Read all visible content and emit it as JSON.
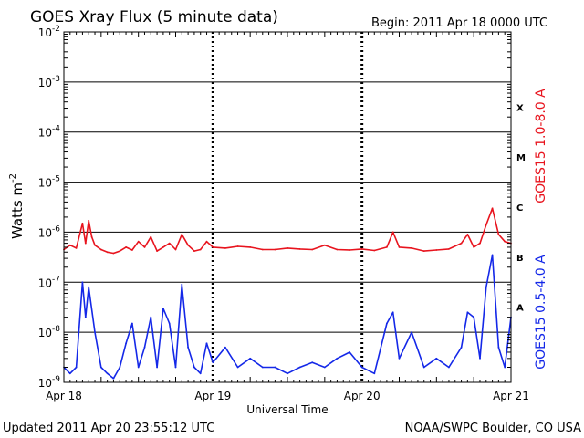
{
  "chart_data": {
    "type": "line",
    "title": "GOES Xray Flux (5 minute data)",
    "begin_label": "Begin:  2011 Apr 18 0000 UTC",
    "xlabel": "Universal Time",
    "ylabel": "Watts m",
    "ylabel_superscript": "-2",
    "y_scale": "log",
    "ylim": [
      1e-09,
      0.01
    ],
    "xlim": [
      "2011-04-18 00:00",
      "2011-04-21 00:00"
    ],
    "x_ticks": [
      "Apr 18",
      "Apr 19",
      "Apr 20",
      "Apr 21"
    ],
    "y_ticks": [
      {
        "mantissa": "10",
        "exp": "-9"
      },
      {
        "mantissa": "10",
        "exp": "-8"
      },
      {
        "mantissa": "10",
        "exp": "-7"
      },
      {
        "mantissa": "10",
        "exp": "-6"
      },
      {
        "mantissa": "10",
        "exp": "-5"
      },
      {
        "mantissa": "10",
        "exp": "-4"
      },
      {
        "mantissa": "10",
        "exp": "-3"
      },
      {
        "mantissa": "10",
        "exp": "-2"
      }
    ],
    "flare_classes": [
      {
        "label": "A",
        "exp": -8
      },
      {
        "label": "B",
        "exp": -7
      },
      {
        "label": "C",
        "exp": -6
      },
      {
        "label": "M",
        "exp": -5
      },
      {
        "label": "X",
        "exp": -4
      }
    ],
    "grid": true,
    "series": [
      {
        "name": "GOES15 1.0-8.0 A",
        "color": "#e8141e",
        "x": [
          "2011-04-18 00:00",
          "2011-04-18 01:00",
          "2011-04-18 02:00",
          "2011-04-18 03:00",
          "2011-04-18 03:30",
          "2011-04-18 04:00",
          "2011-04-18 04:30",
          "2011-04-18 05:00",
          "2011-04-18 06:00",
          "2011-04-18 07:00",
          "2011-04-18 08:00",
          "2011-04-18 09:00",
          "2011-04-18 10:00",
          "2011-04-18 11:00",
          "2011-04-18 12:00",
          "2011-04-18 13:00",
          "2011-04-18 14:00",
          "2011-04-18 15:00",
          "2011-04-18 16:00",
          "2011-04-18 17:00",
          "2011-04-18 18:00",
          "2011-04-18 19:00",
          "2011-04-18 20:00",
          "2011-04-18 21:00",
          "2011-04-18 22:00",
          "2011-04-18 23:00",
          "2011-04-19 00:00",
          "2011-04-19 02:00",
          "2011-04-19 04:00",
          "2011-04-19 06:00",
          "2011-04-19 08:00",
          "2011-04-19 10:00",
          "2011-04-19 12:00",
          "2011-04-19 14:00",
          "2011-04-19 16:00",
          "2011-04-19 18:00",
          "2011-04-19 20:00",
          "2011-04-19 22:00",
          "2011-04-20 00:00",
          "2011-04-20 02:00",
          "2011-04-20 04:00",
          "2011-04-20 05:00",
          "2011-04-20 06:00",
          "2011-04-20 08:00",
          "2011-04-20 10:00",
          "2011-04-20 12:00",
          "2011-04-20 14:00",
          "2011-04-20 16:00",
          "2011-04-20 17:00",
          "2011-04-20 18:00",
          "2011-04-20 19:00",
          "2011-04-20 20:00",
          "2011-04-20 21:00",
          "2011-04-20 22:00",
          "2011-04-20 23:00",
          "2011-04-21 00:00"
        ],
        "values": [
          4.5e-07,
          5.5e-07,
          4.8e-07,
          1.5e-06,
          6e-07,
          1.7e-06,
          8e-07,
          5.5e-07,
          4.5e-07,
          4e-07,
          3.8e-07,
          4.2e-07,
          5e-07,
          4.4e-07,
          6.5e-07,
          5e-07,
          8e-07,
          4.2e-07,
          5e-07,
          6e-07,
          4.5e-07,
          9e-07,
          5.5e-07,
          4.2e-07,
          4.5e-07,
          6.5e-07,
          5e-07,
          4.8e-07,
          5.2e-07,
          5e-07,
          4.5e-07,
          4.5e-07,
          4.8e-07,
          4.6e-07,
          4.5e-07,
          5.5e-07,
          4.5e-07,
          4.4e-07,
          4.6e-07,
          4.3e-07,
          5e-07,
          1e-06,
          5e-07,
          4.8e-07,
          4.2e-07,
          4.4e-07,
          4.6e-07,
          6e-07,
          9e-07,
          5e-07,
          6e-07,
          1.4e-06,
          3e-06,
          9e-07,
          6.5e-07,
          6e-07
        ]
      },
      {
        "name": "GOES15 0.5-4.0 A",
        "color": "#1428e8",
        "x": [
          "2011-04-18 00:00",
          "2011-04-18 01:00",
          "2011-04-18 02:00",
          "2011-04-18 03:00",
          "2011-04-18 03:30",
          "2011-04-18 04:00",
          "2011-04-18 05:00",
          "2011-04-18 06:00",
          "2011-04-18 07:00",
          "2011-04-18 08:00",
          "2011-04-18 09:00",
          "2011-04-18 10:00",
          "2011-04-18 11:00",
          "2011-04-18 12:00",
          "2011-04-18 13:00",
          "2011-04-18 14:00",
          "2011-04-18 15:00",
          "2011-04-18 16:00",
          "2011-04-18 17:00",
          "2011-04-18 18:00",
          "2011-04-18 19:00",
          "2011-04-18 20:00",
          "2011-04-18 21:00",
          "2011-04-18 22:00",
          "2011-04-18 23:00",
          "2011-04-19 00:00",
          "2011-04-19 02:00",
          "2011-04-19 04:00",
          "2011-04-19 06:00",
          "2011-04-19 08:00",
          "2011-04-19 10:00",
          "2011-04-19 12:00",
          "2011-04-19 14:00",
          "2011-04-19 16:00",
          "2011-04-19 18:00",
          "2011-04-19 20:00",
          "2011-04-19 22:00",
          "2011-04-20 00:00",
          "2011-04-20 02:00",
          "2011-04-20 04:00",
          "2011-04-20 05:00",
          "2011-04-20 06:00",
          "2011-04-20 08:00",
          "2011-04-20 10:00",
          "2011-04-20 12:00",
          "2011-04-20 14:00",
          "2011-04-20 16:00",
          "2011-04-20 17:00",
          "2011-04-20 18:00",
          "2011-04-20 19:00",
          "2011-04-20 20:00",
          "2011-04-20 21:00",
          "2011-04-20 22:00",
          "2011-04-20 23:00",
          "2011-04-21 00:00"
        ],
        "values": [
          2e-09,
          1.5e-09,
          2e-09,
          1e-07,
          2e-08,
          8e-08,
          1e-08,
          2e-09,
          1.5e-09,
          1.2e-09,
          2e-09,
          6e-09,
          1.5e-08,
          2e-09,
          5e-09,
          2e-08,
          2e-09,
          3e-08,
          1.5e-08,
          2e-09,
          9e-08,
          5e-09,
          2e-09,
          1.5e-09,
          6e-09,
          2.5e-09,
          5e-09,
          2e-09,
          3e-09,
          2e-09,
          2e-09,
          1.5e-09,
          2e-09,
          2.5e-09,
          2e-09,
          3e-09,
          4e-09,
          2e-09,
          1.5e-09,
          1.5e-08,
          2.5e-08,
          3e-09,
          1e-08,
          2e-09,
          3e-09,
          2e-09,
          5e-09,
          2.5e-08,
          2e-08,
          3e-09,
          8e-08,
          3.5e-07,
          5e-09,
          2e-09,
          2e-08
        ]
      }
    ]
  },
  "footer": {
    "updated": "Updated 2011 Apr 20 23:55:12 UTC",
    "source": "NOAA/SWPC Boulder, CO USA"
  }
}
